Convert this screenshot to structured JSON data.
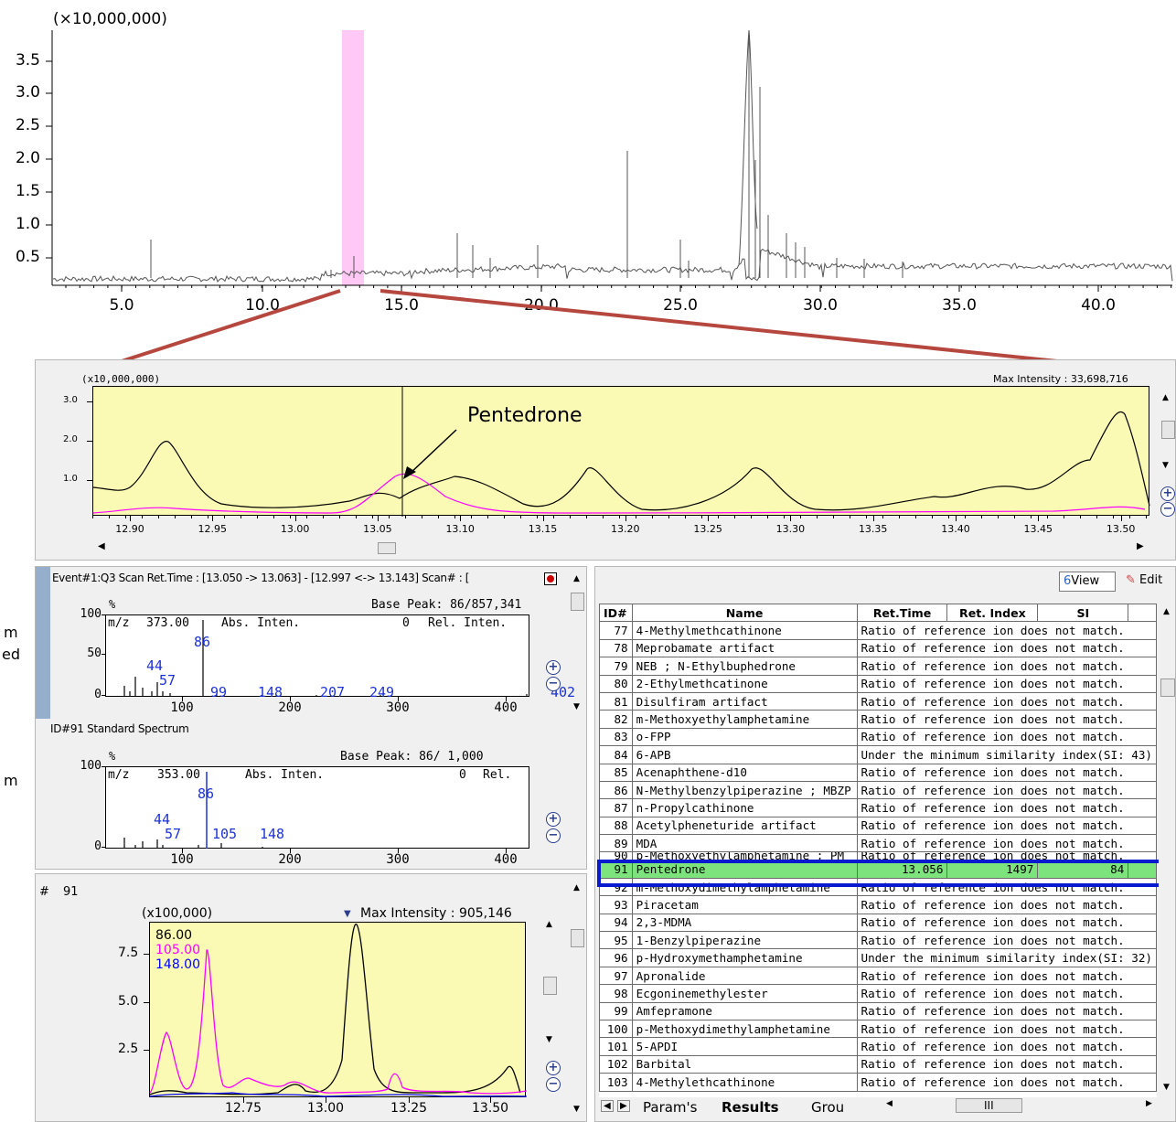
{
  "colors": {
    "highlight_band": "#ffc8f5",
    "connector": "#b5473f",
    "chart_bg": "#fafab4",
    "series_86": "#000000",
    "series_105": "#ff00ff",
    "series_148": "#0000ff",
    "selected_row": "#7de37d",
    "frame_blue": "#0a1bcf",
    "mass_label": "#1c32d8"
  },
  "tic_chart": {
    "multiplier": "(×10,000,000)",
    "y_ticks": [
      "3.5",
      "3.0",
      "2.5",
      "2.0",
      "1.5",
      "1.0",
      "0.5"
    ],
    "x_ticks": [
      "5.0",
      "10.0",
      "15.0",
      "20.0",
      "25.0",
      "30.0",
      "35.0",
      "40.0"
    ]
  },
  "zoom_chart": {
    "multiplier": "(x10,000,000)",
    "max_intensity": "Max Intensity : 33,698,716",
    "y_ticks": [
      "3.0",
      "2.0",
      "1.0"
    ],
    "x_ticks": [
      "12.90",
      "12.95",
      "13.00",
      "13.05",
      "13.10",
      "13.15",
      "13.20",
      "13.25",
      "13.30",
      "13.35",
      "13.40",
      "13.45",
      "13.50"
    ],
    "annotation": "Pentedrone"
  },
  "spectrum_panel": {
    "header": "Event#1:Q3 Scan  Ret.Time : [13.050 -> 13.063] - [12.997 <-> 13.143]   Scan# : [",
    "measured": {
      "base_peak": "Base Peak: 86/857,341",
      "pct": "%",
      "mz_label": "m/z",
      "mz_value": "373.00",
      "abs": "Abs. Inten.",
      "rel_zero": "0",
      "rel": "Rel. Inten.",
      "y_ticks": [
        "100",
        "50",
        "0"
      ],
      "x_ticks": [
        "100",
        "200",
        "300",
        "400"
      ],
      "peaks": [
        "86",
        "44",
        "57",
        "99",
        "148",
        "207",
        "249",
        "402"
      ]
    },
    "standard_title": "ID#91 Standard Spectrum",
    "standard": {
      "base_peak": "Base Peak: 86/ 1,000",
      "pct": "%",
      "mz_label": "m/z",
      "mz_value": "353.00",
      "abs": "Abs. Inten.",
      "rel_zero": "0",
      "rel": "Rel.",
      "y_ticks": [
        "100",
        "0"
      ],
      "x_ticks": [
        "100",
        "200",
        "300",
        "400"
      ],
      "peaks": [
        "86",
        "44",
        "57",
        "105",
        "148"
      ]
    }
  },
  "left_edge_text": [
    "m",
    "ed",
    "m"
  ],
  "mc_panel": {
    "id_label": "#",
    "id_value": "91",
    "multiplier": "(x100,000)",
    "max_intensity": "Max Intensity : 905,146",
    "legend": [
      "86.00",
      "105.00",
      "148.00"
    ],
    "y_ticks": [
      "7.5",
      "5.0",
      "2.5"
    ],
    "x_ticks": [
      "12.75",
      "13.00",
      "13.25",
      "13.50"
    ]
  },
  "results_panel": {
    "view_label": "View",
    "edit_label": "Edit",
    "columns": [
      "ID#",
      "Name",
      "Ret.Time",
      "Ret. Index",
      "SI"
    ],
    "partial_row": {
      "id": "90",
      "name": "p-Methoxyethylamphetamine ; PM",
      "status": "Ratio of reference ion does not match."
    },
    "rows_top": [
      {
        "id": "77",
        "name": "4-Methylmethcathinone",
        "status": "Ratio of reference ion does not match."
      },
      {
        "id": "78",
        "name": "Meprobamate artifact",
        "status": "Ratio of reference ion does not match."
      },
      {
        "id": "79",
        "name": "NEB ; N-Ethylbuphedrone",
        "status": "Ratio of reference ion does not match."
      },
      {
        "id": "80",
        "name": "2-Ethylmethcatinone",
        "status": "Ratio of reference ion does not match."
      },
      {
        "id": "81",
        "name": "Disulfiram artifact",
        "status": "Ratio of reference ion does not match."
      },
      {
        "id": "82",
        "name": "m-Methoxyethylamphetamine",
        "status": "Ratio of reference ion does not match."
      },
      {
        "id": "83",
        "name": "o-FPP",
        "status": "Ratio of reference ion does not match."
      },
      {
        "id": "84",
        "name": "6-APB",
        "status": "Under the minimum similarity index(SI: 43)"
      },
      {
        "id": "85",
        "name": "Acenaphthene-d10",
        "status": "Ratio of reference ion does not match."
      },
      {
        "id": "86",
        "name": "N-Methylbenzylpiperazine ; MBZP",
        "status": "Ratio of reference ion does not match."
      },
      {
        "id": "87",
        "name": "n-Propylcathinone",
        "status": "Ratio of reference ion does not match."
      },
      {
        "id": "88",
        "name": "Acetylpheneturide artifact",
        "status": "Ratio of reference ion does not match."
      },
      {
        "id": "89",
        "name": "MDA",
        "status": "Ratio of reference ion does not match."
      }
    ],
    "selected": {
      "id": "91",
      "name": "Pentedrone",
      "ret_time": "13.056",
      "ret_index": "1497",
      "si": "84"
    },
    "rows_bottom": [
      {
        "id": "92",
        "name": "m-Methoxydimethylamphetamine",
        "status": "Ratio of reference ion does not match."
      },
      {
        "id": "93",
        "name": "Piracetam",
        "status": "Ratio of reference ion does not match."
      },
      {
        "id": "94",
        "name": "2,3-MDMA",
        "status": "Ratio of reference ion does not match."
      },
      {
        "id": "95",
        "name": "1-Benzylpiperazine",
        "status": "Ratio of reference ion does not match."
      },
      {
        "id": "96",
        "name": "p-Hydroxymethamphetamine",
        "status": "Under the minimum similarity index(SI: 32)"
      },
      {
        "id": "97",
        "name": "Apronalide",
        "status": "Ratio of reference ion does not match."
      },
      {
        "id": "98",
        "name": "Ecgoninemethylester",
        "status": "Ratio of reference ion does not match."
      },
      {
        "id": "99",
        "name": "Amfepramone",
        "status": "Ratio of reference ion does not match."
      },
      {
        "id": "100",
        "name": "p-Methoxydimethylamphetamine",
        "status": "Ratio of reference ion does not match."
      },
      {
        "id": "101",
        "name": "5-APDI",
        "status": "Ratio of reference ion does not match."
      },
      {
        "id": "102",
        "name": "Barbital",
        "status": "Ratio of reference ion does not match."
      },
      {
        "id": "103",
        "name": "4-Methylethcathinone",
        "status": "Ratio of reference ion does not match."
      }
    ],
    "tabs": [
      "Param's",
      "Results",
      "Grou"
    ],
    "hscroll_grip": "III"
  }
}
